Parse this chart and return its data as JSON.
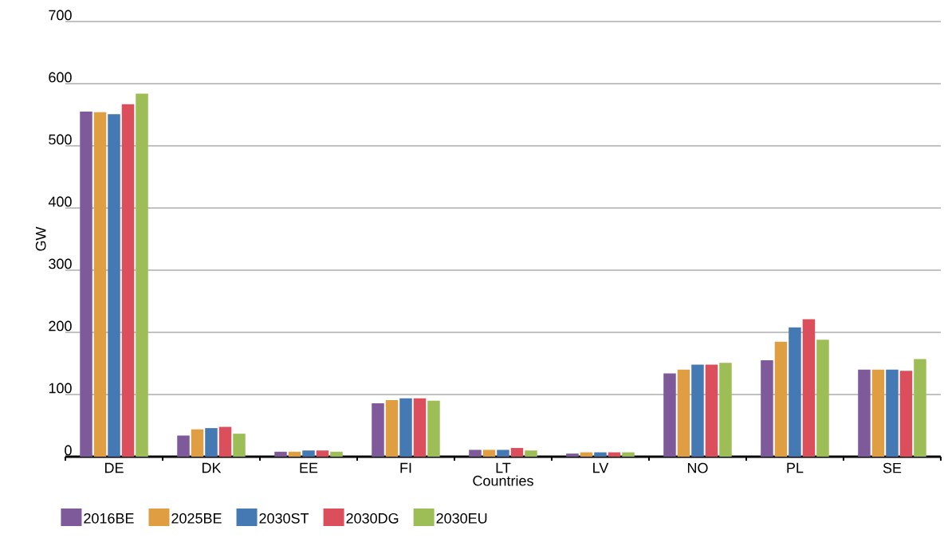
{
  "chart_data": {
    "type": "bar",
    "xlabel": "Countries",
    "ylabel": "GW",
    "categories": [
      "DE",
      "DK",
      "EE",
      "FI",
      "LT",
      "LV",
      "NO",
      "PL",
      "SE"
    ],
    "series": [
      {
        "name": "2016BE",
        "color": "#7f5a9b",
        "values": [
          555,
          34,
          8,
          86,
          11,
          5,
          134,
          155,
          140
        ]
      },
      {
        "name": "2025BE",
        "color": "#e09e42",
        "values": [
          554,
          44,
          8,
          91,
          11,
          7,
          140,
          185,
          140
        ]
      },
      {
        "name": "2030ST",
        "color": "#4479b4",
        "values": [
          551,
          46,
          10,
          94,
          11,
          7,
          148,
          208,
          140
        ]
      },
      {
        "name": "2030DG",
        "color": "#da4f5b",
        "values": [
          567,
          48,
          10,
          94,
          14,
          7,
          148,
          221,
          138
        ]
      },
      {
        "name": "2030EU",
        "color": "#9dbd56",
        "values": [
          584,
          37,
          8,
          90,
          10,
          7,
          151,
          188,
          157
        ]
      }
    ],
    "ylim": [
      0,
      700
    ],
    "yticks": [
      0,
      100,
      200,
      300,
      400,
      500,
      600,
      700
    ],
    "grid": "y",
    "legend": "bottom"
  }
}
